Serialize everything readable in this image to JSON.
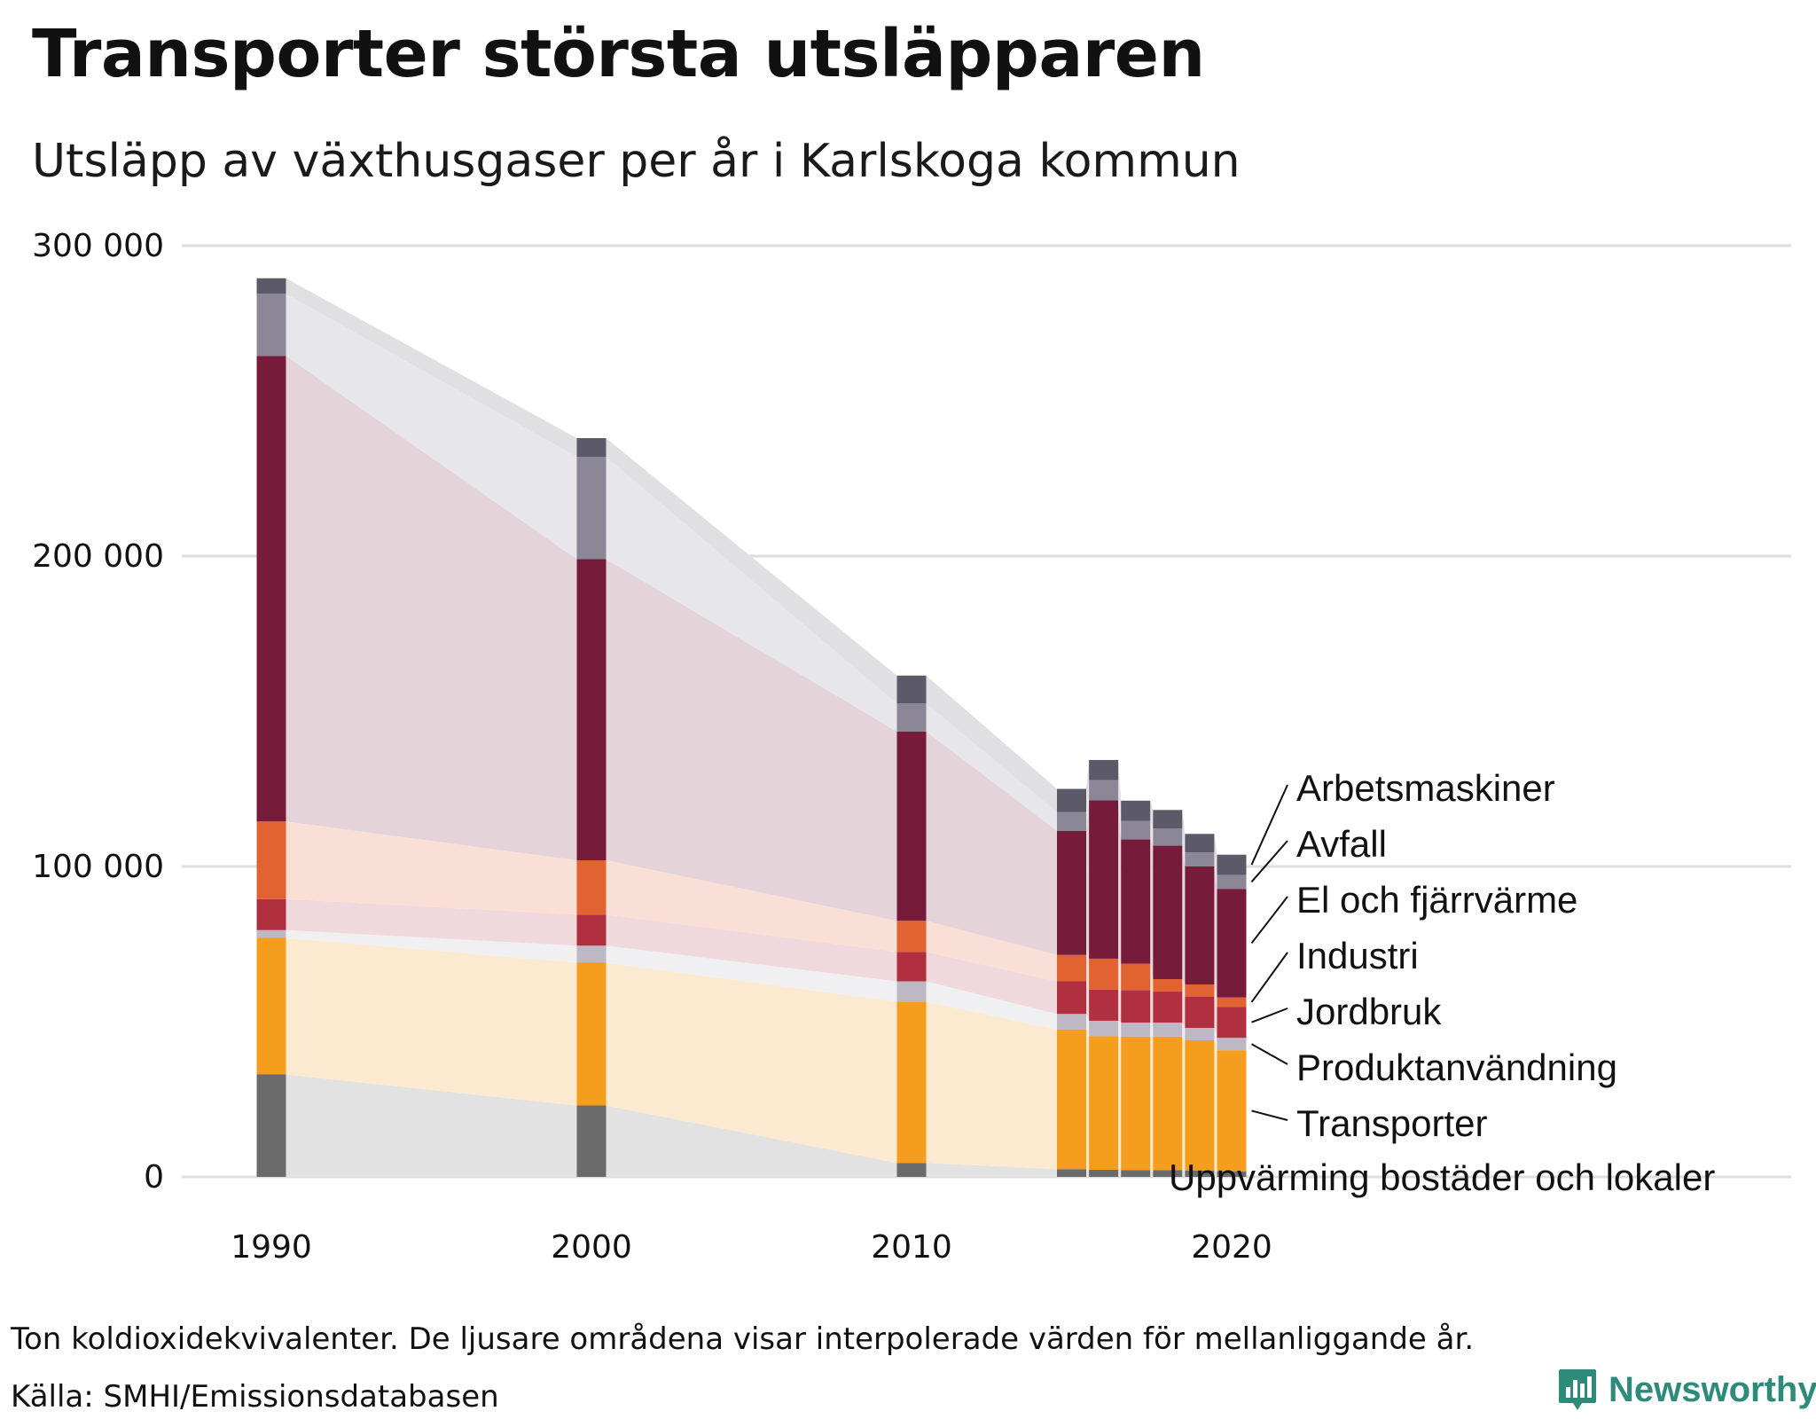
{
  "title": "Transporter största utsläpparen",
  "subtitle": "Utsläpp av växthusgaser per år i Karlskoga kommun",
  "note": "Ton koldioxidekvivalenter. De ljusare områdena visar interpolerade värden för mellanliggande år.",
  "source": "Källa: SMHI/Emissionsdatabasen",
  "brand": {
    "name": "Newsworthy",
    "icon": "newsworthy-logo-icon",
    "color": "#2e8b7a"
  },
  "chart_data": {
    "type": "bar",
    "stacked": true,
    "ylim": [
      0,
      300000
    ],
    "yticks": [
      0,
      100000,
      200000,
      300000
    ],
    "ytick_labels": [
      "0",
      "100 000",
      "200 000",
      "300 000"
    ],
    "xticks": [
      1990,
      2000,
      2010,
      2020
    ],
    "xtick_labels": [
      "1990",
      "2000",
      "2010",
      "2020"
    ],
    "grid": true,
    "legend": "direct labels at right of last bar",
    "categories": [
      1990,
      2000,
      2010,
      2015,
      2016,
      2017,
      2018,
      2019,
      2020
    ],
    "series": [
      {
        "name": "Uppvärming bostäder och lokaler",
        "color": "#6b6b6b",
        "band_color": "#e2e2e2",
        "values": [
          33000,
          23000,
          4500,
          2500,
          2300,
          2200,
          2200,
          2000,
          1800
        ]
      },
      {
        "name": "Transporter",
        "color": "#f59d1c",
        "band_color": "#fcead0",
        "values": [
          44000,
          46000,
          52000,
          45000,
          43000,
          43000,
          43000,
          42000,
          39000
        ]
      },
      {
        "name": "Produktanvändning",
        "color": "#bdb8c4",
        "band_color": "#f0eff2",
        "values": [
          2500,
          5500,
          6500,
          5000,
          5000,
          4500,
          4500,
          4000,
          4000
        ]
      },
      {
        "name": "Jordbruk",
        "color": "#b03040",
        "band_color": "#efd9dd",
        "values": [
          10000,
          10000,
          9500,
          10500,
          10000,
          10500,
          10000,
          10000,
          10000
        ]
      },
      {
        "name": "Industri",
        "color": "#e16331",
        "band_color": "#f9dfd6",
        "values": [
          25000,
          17500,
          10000,
          8500,
          10000,
          8500,
          4000,
          4000,
          3000
        ]
      },
      {
        "name": "El och fjärrvärme",
        "color": "#761c3a",
        "band_color": "#e4d4da",
        "values": [
          150000,
          97000,
          61000,
          40000,
          51000,
          40000,
          43000,
          38000,
          35000
        ]
      },
      {
        "name": "Avfall",
        "color": "#8c8796",
        "band_color": "#e7e6ea",
        "values": [
          20000,
          33000,
          9000,
          6000,
          6500,
          6000,
          5500,
          4500,
          4500
        ]
      },
      {
        "name": "Arbetsmaskiner",
        "color": "#5c5a69",
        "band_color": "#e0dfe2",
        "values": [
          5000,
          6000,
          9000,
          7500,
          6500,
          6500,
          6000,
          6000,
          6500
        ]
      }
    ]
  }
}
